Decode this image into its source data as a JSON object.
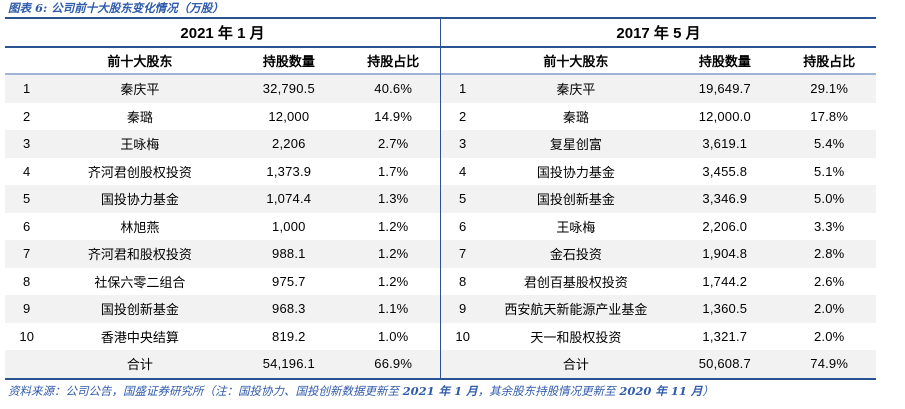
{
  "figure_label": "图表 6: 公司前十大股东变化情况（万股）",
  "tables": [
    {
      "period": "2021 年 1 月",
      "columns": [
        "前十大股东",
        "持股数量",
        "持股占比"
      ],
      "rows": [
        {
          "rank": "1",
          "name": "秦庆平",
          "qty": "32,790.5",
          "pct": "40.6%"
        },
        {
          "rank": "2",
          "name": "秦璐",
          "qty": "12,000",
          "pct": "14.9%"
        },
        {
          "rank": "3",
          "name": "王咏梅",
          "qty": "2,206",
          "pct": "2.7%"
        },
        {
          "rank": "4",
          "name": "齐河君创股权投资",
          "qty": "1,373.9",
          "pct": "1.7%"
        },
        {
          "rank": "5",
          "name": "国投协力基金",
          "qty": "1,074.4",
          "pct": "1.3%"
        },
        {
          "rank": "6",
          "name": "林旭燕",
          "qty": "1,000",
          "pct": "1.2%"
        },
        {
          "rank": "7",
          "name": "齐河君和股权投资",
          "qty": "988.1",
          "pct": "1.2%"
        },
        {
          "rank": "8",
          "name": "社保六零二组合",
          "qty": "975.7",
          "pct": "1.2%"
        },
        {
          "rank": "9",
          "name": "国投创新基金",
          "qty": "968.3",
          "pct": "1.1%"
        },
        {
          "rank": "10",
          "name": "香港中央结算",
          "qty": "819.2",
          "pct": "1.0%"
        }
      ],
      "total": {
        "rank": "",
        "name": "合计",
        "qty": "54,196.1",
        "pct": "66.9%"
      }
    },
    {
      "period": "2017 年 5 月",
      "columns": [
        "前十大股东",
        "持股数量",
        "持股占比"
      ],
      "rows": [
        {
          "rank": "1",
          "name": "秦庆平",
          "qty": "19,649.7",
          "pct": "29.1%"
        },
        {
          "rank": "2",
          "name": "秦璐",
          "qty": "12,000.0",
          "pct": "17.8%"
        },
        {
          "rank": "3",
          "name": "复星创富",
          "qty": "3,619.1",
          "pct": "5.4%"
        },
        {
          "rank": "4",
          "name": "国投协力基金",
          "qty": "3,455.8",
          "pct": "5.1%"
        },
        {
          "rank": "5",
          "name": "国投创新基金",
          "qty": "3,346.9",
          "pct": "5.0%"
        },
        {
          "rank": "6",
          "name": "王咏梅",
          "qty": "2,206.0",
          "pct": "3.3%"
        },
        {
          "rank": "7",
          "name": "金石投资",
          "qty": "1,904.8",
          "pct": "2.8%"
        },
        {
          "rank": "8",
          "name": "君创百基股权投资",
          "qty": "1,744.2",
          "pct": "2.6%"
        },
        {
          "rank": "9",
          "name": "西安航天新能源产业基金",
          "qty": "1,360.5",
          "pct": "2.0%"
        },
        {
          "rank": "10",
          "name": "天一和股权投资",
          "qty": "1,321.7",
          "pct": "2.0%"
        }
      ],
      "total": {
        "rank": "",
        "name": "合计",
        "qty": "50,608.7",
        "pct": "74.9%"
      }
    }
  ],
  "source_note": {
    "segments": [
      {
        "text": "资料来源：公司公告，国盛证券研究所（注：国投协力、国投创新数据更新至 ",
        "bold": false
      },
      {
        "text": "2021 年 1 月",
        "bold": true
      },
      {
        "text": "，其余股东持股情况更新至 ",
        "bold": false
      },
      {
        "text": "2020 年 11 月",
        "bold": true
      },
      {
        "text": "）",
        "bold": false
      }
    ]
  },
  "colors": {
    "border_dark": "#2a5391",
    "border_light": "#a0b4d8",
    "title_blue": "#2f5bab",
    "row_alt_bg": "#f2f2f2"
  }
}
